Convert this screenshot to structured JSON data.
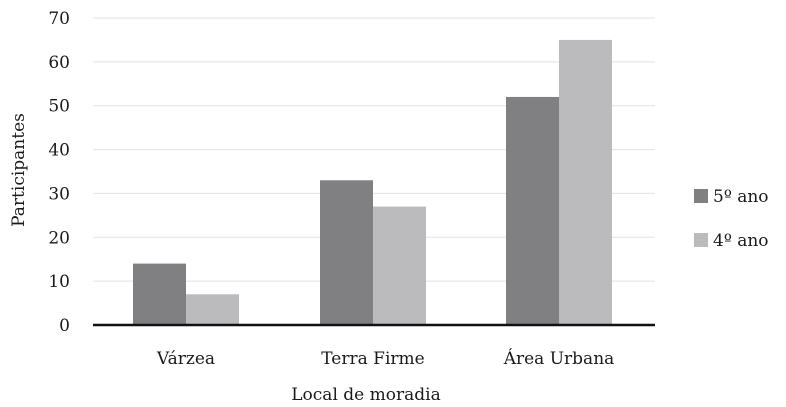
{
  "chart_data": {
    "type": "bar",
    "title": "",
    "xlabel": "Local de moradia",
    "ylabel": "Participantes",
    "ylim": [
      0,
      70
    ],
    "yticks": [
      0,
      10,
      20,
      30,
      40,
      50,
      60,
      70
    ],
    "categories": [
      "Várzea",
      "Terra Firme",
      "Área Urbana"
    ],
    "series": [
      {
        "name": "5º ano",
        "color": "#808082",
        "values": [
          14,
          33,
          52
        ]
      },
      {
        "name": "4º ano",
        "color": "#bbbbbe",
        "values": [
          7,
          27,
          65
        ]
      }
    ],
    "grid": true,
    "legend_position": "right"
  }
}
